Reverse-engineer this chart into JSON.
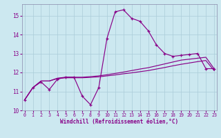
{
  "xlabel": "Windchill (Refroidissement éolien,°C)",
  "ylabel": "",
  "background_color": "#cce8f0",
  "grid_color": "#aaccd8",
  "line_color": "#880088",
  "x_values": [
    0,
    1,
    2,
    3,
    4,
    5,
    6,
    7,
    8,
    9,
    10,
    11,
    12,
    13,
    14,
    15,
    16,
    17,
    18,
    19,
    20,
    21,
    22,
    23
  ],
  "y_line1": [
    10.55,
    11.2,
    11.5,
    11.1,
    11.65,
    11.75,
    11.75,
    10.75,
    10.3,
    11.2,
    13.8,
    15.2,
    15.3,
    14.85,
    14.7,
    14.2,
    13.45,
    13.0,
    12.85,
    12.9,
    12.95,
    13.0,
    12.2,
    12.2
  ],
  "y_line2": [
    10.55,
    11.2,
    11.55,
    11.55,
    11.7,
    11.75,
    11.75,
    11.75,
    11.78,
    11.82,
    11.88,
    11.95,
    12.02,
    12.1,
    12.18,
    12.25,
    12.35,
    12.45,
    12.55,
    12.65,
    12.7,
    12.75,
    12.8,
    12.2
  ],
  "y_line3": [
    10.55,
    11.2,
    11.55,
    11.55,
    11.68,
    11.72,
    11.72,
    11.72,
    11.74,
    11.77,
    11.82,
    11.87,
    11.93,
    11.98,
    12.04,
    12.1,
    12.18,
    12.26,
    12.35,
    12.43,
    12.5,
    12.57,
    12.63,
    12.1
  ],
  "xlim": [
    0,
    23
  ],
  "ylim": [
    10.0,
    15.6
  ],
  "yticks": [
    10,
    11,
    12,
    13,
    14,
    15
  ],
  "xticks": [
    0,
    1,
    2,
    3,
    4,
    5,
    6,
    7,
    8,
    9,
    10,
    11,
    12,
    13,
    14,
    15,
    16,
    17,
    18,
    19,
    20,
    21,
    22,
    23
  ]
}
